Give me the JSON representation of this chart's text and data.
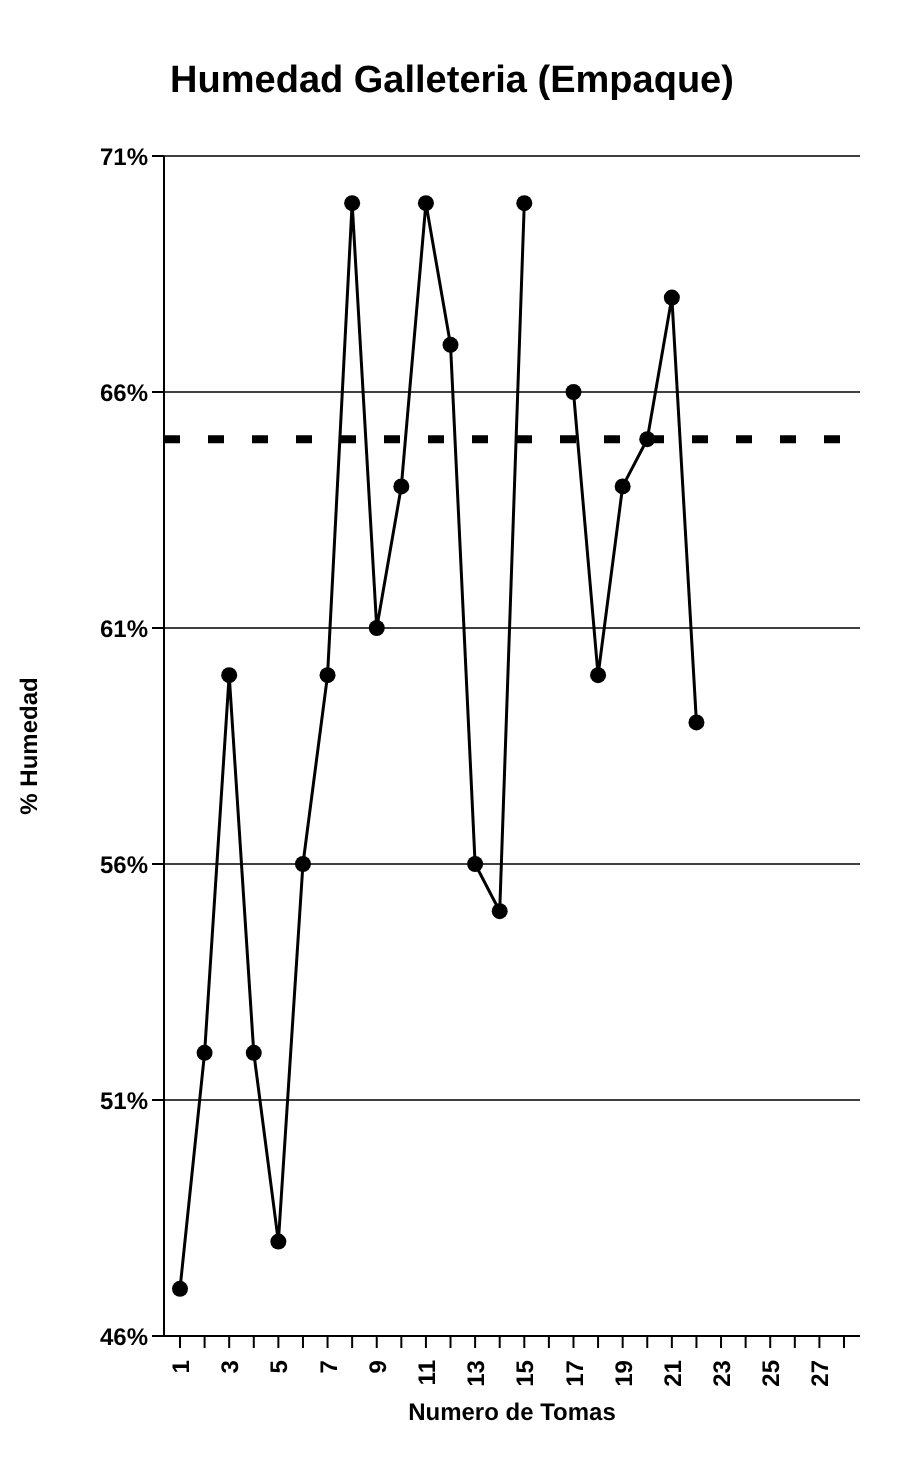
{
  "chart_data": {
    "type": "line",
    "title": "Humedad Galleteria (Empaque)",
    "xlabel": "Numero de Tomas",
    "ylabel": "% Humedad",
    "categories": [
      "1",
      null,
      "3",
      null,
      "5",
      null,
      "7",
      null,
      "9",
      null,
      "11",
      null,
      "13",
      null,
      "15",
      null,
      "17",
      null,
      "19",
      null,
      "21",
      null,
      "23",
      null,
      "25",
      null,
      "27",
      null
    ],
    "series": [
      {
        "color": "#000000",
        "values": [
          47,
          52,
          60,
          52,
          48,
          56,
          60,
          70,
          61,
          64,
          70,
          67,
          56,
          55,
          70,
          null,
          66,
          60,
          64,
          65,
          68,
          59,
          null,
          null,
          null,
          null,
          null,
          null
        ]
      }
    ],
    "ylim": [
      46,
      71
    ],
    "yticks": [
      {
        "value": 46,
        "label": "46%"
      },
      {
        "value": 51,
        "label": "51%"
      },
      {
        "value": 56,
        "label": "56%"
      },
      {
        "value": 61,
        "label": "61%"
      },
      {
        "value": 66,
        "label": "66%"
      },
      {
        "value": 71,
        "label": "71%"
      }
    ],
    "ref_lines": [
      {
        "axis": "y",
        "value": 65,
        "color": "#000000",
        "line_style": "dashed"
      }
    ],
    "grid": "y",
    "marker": "circle",
    "line_style": "solid",
    "legend": false
  }
}
